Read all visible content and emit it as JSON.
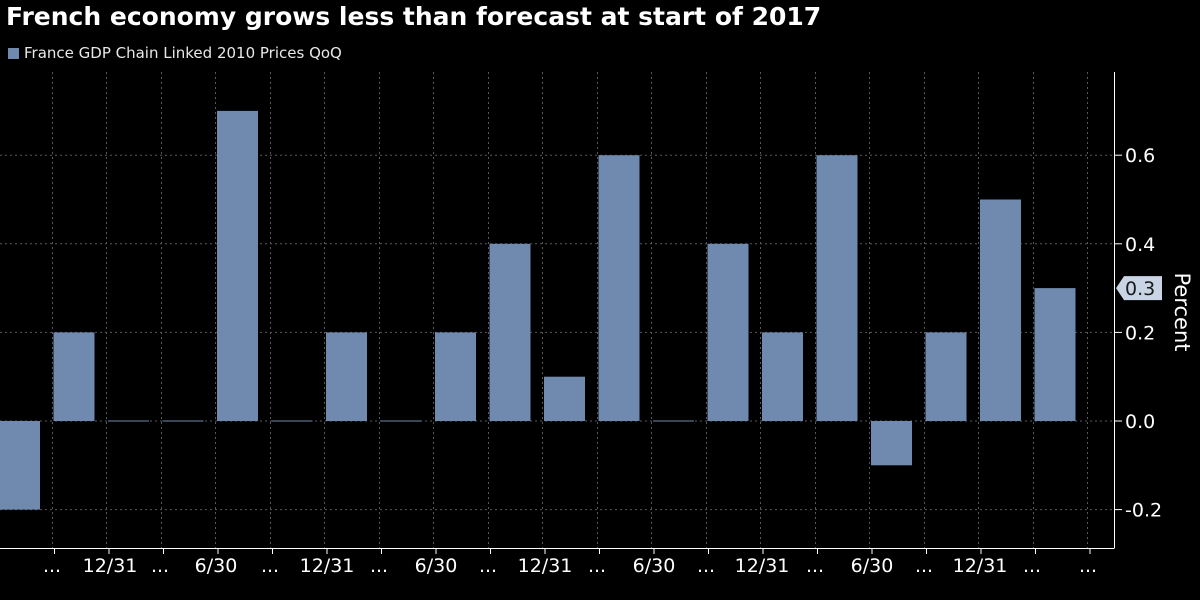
{
  "title": "French economy grows less than forecast at start of 2017",
  "chart_data": {
    "type": "bar",
    "title": "French economy grows less than forecast at start of 2017",
    "series": [
      {
        "name": "France GDP Chain Linked 2010 Prices QoQ",
        "color": "#7089ae",
        "values": [
          -0.2,
          0.2,
          0.0,
          0.0,
          0.7,
          0.0,
          0.2,
          0.0,
          0.2,
          0.4,
          0.1,
          0.6,
          0.0,
          0.4,
          0.2,
          0.6,
          -0.1,
          0.2,
          0.5,
          0.3
        ]
      }
    ],
    "ylabel": "Percent",
    "ylim": [
      -0.29,
      0.78
    ],
    "y_ticks": [
      "0.6",
      "0.4",
      "0.2",
      "0.0",
      "-0.2"
    ],
    "y_tick_values": [
      0.6,
      0.4,
      0.2,
      0.0,
      -0.2
    ],
    "x_tick_labels": [
      "...",
      "12/31",
      "...",
      "6/30",
      "...",
      "12/31",
      "...",
      "6/30",
      "...",
      "12/31",
      "...",
      "6/30",
      "...",
      "12/31",
      "...",
      "6/30",
      "...",
      "12/31",
      "...",
      "..."
    ],
    "last_value_label": "0.3",
    "grid": true,
    "y_axis_side": "right",
    "background": "#000000",
    "legend_position": "top-left"
  }
}
